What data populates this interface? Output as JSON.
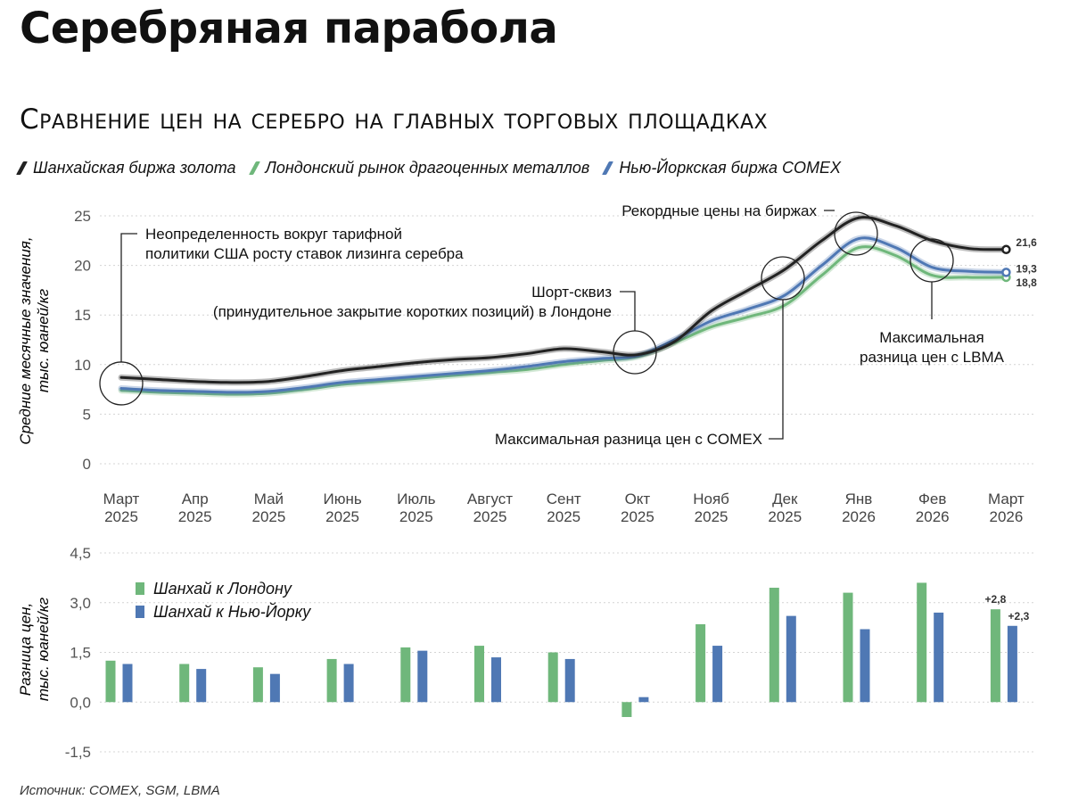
{
  "title": "Серебряная парабола",
  "subtitle": "Сравнение цен на серебро на главных торговых площадках",
  "source": "Источник: COMEX, SGM, LBMA",
  "colors": {
    "shanghai": "#222222",
    "london": "#6fb77b",
    "newyork": "#4f78b4",
    "grid": "#d4d4d4",
    "annotation": "#222222"
  },
  "chart_data": [
    {
      "type": "line",
      "title": "Сравнение цен на серебро на главных торговых площадках",
      "ylabel": "Средние месячные значения, тыс. юаней/кг",
      "ylim": [
        0,
        25
      ],
      "yticks": [
        0,
        5,
        10,
        15,
        20,
        25
      ],
      "categories": [
        [
          "Март",
          "2025"
        ],
        [
          "Апр",
          "2025"
        ],
        [
          "Май",
          "2025"
        ],
        [
          "Июнь",
          "2025"
        ],
        [
          "Июль",
          "2025"
        ],
        [
          "Август",
          "2025"
        ],
        [
          "Сент",
          "2025"
        ],
        [
          "Окт",
          "2025"
        ],
        [
          "Нояб",
          "2025"
        ],
        [
          "Дек",
          "2025"
        ],
        [
          "Янв",
          "2026"
        ],
        [
          "Фев",
          "2026"
        ],
        [
          "Март",
          "2026"
        ]
      ],
      "series": [
        {
          "key": "shanghai",
          "name": "Шанхайская биржа золота",
          "x": [
            0,
            0.5,
            1,
            1.5,
            2,
            2.5,
            3,
            3.5,
            4,
            4.5,
            5,
            5.5,
            6,
            6.5,
            7,
            7.5,
            8,
            8.5,
            9,
            9.5,
            10,
            10.5,
            11,
            11.5,
            12
          ],
          "values": [
            8.7,
            8.5,
            8.3,
            8.2,
            8.3,
            8.8,
            9.4,
            9.8,
            10.2,
            10.5,
            10.7,
            11.1,
            11.6,
            11.3,
            11.0,
            12.3,
            15.4,
            17.5,
            19.6,
            22.5,
            24.8,
            24.0,
            22.5,
            21.7,
            21.6
          ],
          "end_label": "21,6"
        },
        {
          "key": "london",
          "name": "Лондонский рынок драгоценных металлов",
          "x": [
            0,
            0.5,
            1,
            1.5,
            2,
            2.5,
            3,
            3.5,
            4,
            4.5,
            5,
            5.5,
            6,
            6.5,
            7,
            7.5,
            8,
            8.5,
            9,
            9.5,
            10,
            10.5,
            11,
            11.5,
            12
          ],
          "values": [
            7.4,
            7.2,
            7.1,
            7.0,
            7.1,
            7.5,
            8.0,
            8.3,
            8.6,
            8.9,
            9.2,
            9.5,
            10.0,
            10.4,
            10.8,
            12.2,
            13.8,
            14.8,
            16.0,
            19.0,
            21.8,
            21.0,
            19.0,
            18.8,
            18.8
          ],
          "end_label": "18,8"
        },
        {
          "key": "newyork",
          "name": "Нью-Йоркская биржа COMEX",
          "x": [
            0,
            0.5,
            1,
            1.5,
            2,
            2.5,
            3,
            3.5,
            4,
            4.5,
            5,
            5.5,
            6,
            6.5,
            7,
            7.5,
            8,
            8.5,
            9,
            9.5,
            10,
            10.5,
            11,
            11.5,
            12
          ],
          "values": [
            7.6,
            7.4,
            7.3,
            7.2,
            7.3,
            7.7,
            8.2,
            8.5,
            8.8,
            9.1,
            9.4,
            9.8,
            10.3,
            10.6,
            10.9,
            12.5,
            14.4,
            15.6,
            17.0,
            20.0,
            22.7,
            21.8,
            19.8,
            19.4,
            19.3
          ],
          "end_label": "19,3"
        }
      ],
      "annotations": [
        {
          "lines": [
            "Неопределенность вокруг тарифной",
            "политики США росту ставок лизинга серебра"
          ],
          "x": 0,
          "y": 8.1
        },
        {
          "lines": [
            "Шорт-сквиз",
            "(принудительное закрытие коротких позиций) в Лондоне"
          ],
          "x": 7,
          "y": 11.0
        },
        {
          "lines": [
            "Рекордные цены на биржах"
          ],
          "x": 10.1,
          "y": 23.5
        },
        {
          "lines": [
            "Максимальная разница цен с COMEX"
          ],
          "x": 9.0,
          "y": 18.6
        },
        {
          "lines": [
            "Максимальная",
            "разница цен с LBMA"
          ],
          "x": 11.2,
          "y": 20.5
        }
      ]
    },
    {
      "type": "bar",
      "ylabel": "Разница цен, тыс. юаней/кг",
      "ylim": [
        -1.5,
        4.5
      ],
      "yticks": [
        -1.5,
        0,
        1.5,
        3.0,
        4.5
      ],
      "ytick_labels": [
        "-1,5",
        "0,0",
        "1,5",
        "3,0",
        "4,5"
      ],
      "series": [
        {
          "key": "london",
          "name": "Шанхай к Лондону",
          "values": [
            1.25,
            1.15,
            1.05,
            1.3,
            1.65,
            1.7,
            1.5,
            -0.45,
            2.35,
            3.45,
            3.3,
            3.6,
            2.8
          ]
        },
        {
          "key": "newyork",
          "name": "Шанхай к Нью-Йорку",
          "values": [
            1.15,
            1.0,
            0.85,
            1.15,
            1.55,
            1.35,
            1.3,
            0.15,
            1.7,
            2.6,
            2.2,
            2.7,
            2.3
          ]
        }
      ],
      "end_labels": [
        "+2,8",
        "+2,3"
      ]
    }
  ]
}
